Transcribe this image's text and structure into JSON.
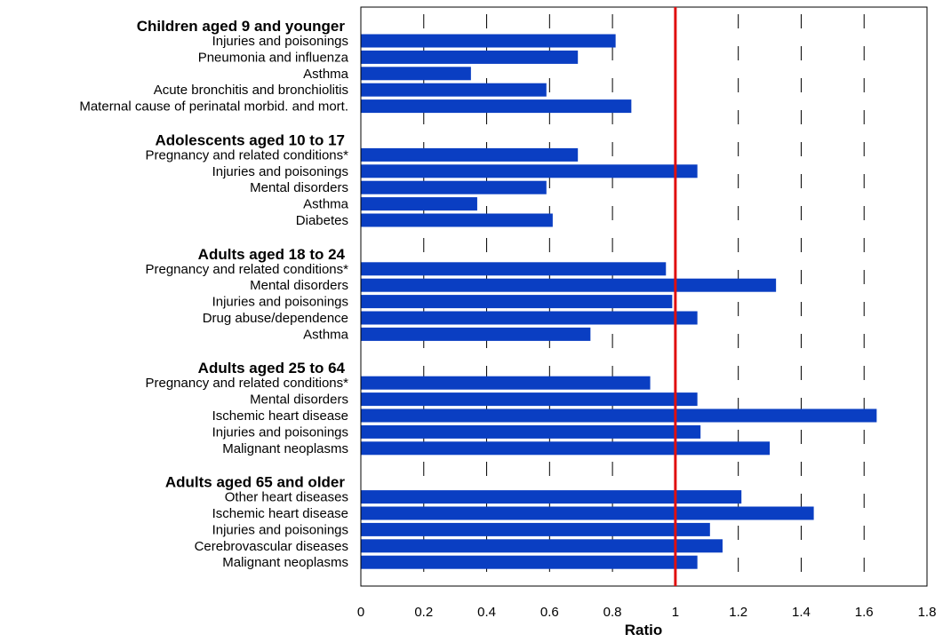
{
  "chart_data": {
    "type": "bar",
    "orientation": "horizontal",
    "xlabel": "Ratio",
    "xlim": [
      0,
      1.8
    ],
    "xticks": [
      "0",
      "0.2",
      "0.4",
      "0.6",
      "0.8",
      "1",
      "1.2",
      "1.4",
      "1.6",
      "1.8"
    ],
    "grid": "vertical dashed",
    "reference_line": 1,
    "colors": {
      "bar": "#0a3ec2",
      "reference_line": "#e01010"
    },
    "groups": [
      {
        "name": "Children aged 9 and younger",
        "items": [
          {
            "label": "Injuries and poisonings",
            "value": 0.81
          },
          {
            "label": "Pneumonia and influenza",
            "value": 0.69
          },
          {
            "label": "Asthma",
            "value": 0.35
          },
          {
            "label": "Acute bronchitis and bronchiolitis",
            "value": 0.59
          },
          {
            "label": "Maternal cause of perinatal morbid. and mort.",
            "value": 0.86
          }
        ]
      },
      {
        "name": "Adolescents aged 10 to 17",
        "items": [
          {
            "label": "Pregnancy and related conditions*",
            "value": 0.69
          },
          {
            "label": "Injuries and poisonings",
            "value": 1.07
          },
          {
            "label": "Mental disorders",
            "value": 0.59
          },
          {
            "label": "Asthma",
            "value": 0.37
          },
          {
            "label": "Diabetes",
            "value": 0.61
          }
        ]
      },
      {
        "name": "Adults aged 18 to 24",
        "items": [
          {
            "label": "Pregnancy and related conditions*",
            "value": 0.97
          },
          {
            "label": "Mental disorders",
            "value": 1.32
          },
          {
            "label": "Injuries and poisonings",
            "value": 0.99
          },
          {
            "label": "Drug abuse/dependence",
            "value": 1.07
          },
          {
            "label": "Asthma",
            "value": 0.73
          }
        ]
      },
      {
        "name": "Adults aged 25 to 64",
        "items": [
          {
            "label": "Pregnancy and related conditions*",
            "value": 0.92
          },
          {
            "label": "Mental disorders",
            "value": 1.07
          },
          {
            "label": "Ischemic heart disease",
            "value": 1.64
          },
          {
            "label": "Injuries and poisonings",
            "value": 1.08
          },
          {
            "label": "Malignant neoplasms",
            "value": 1.3
          }
        ]
      },
      {
        "name": "Adults aged 65 and older",
        "items": [
          {
            "label": "Other heart diseases",
            "value": 1.21
          },
          {
            "label": "Ischemic heart disease",
            "value": 1.44
          },
          {
            "label": "Injuries and poisonings",
            "value": 1.11
          },
          {
            "label": "Cerebrovascular diseases",
            "value": 1.15
          },
          {
            "label": "Malignant neoplasms",
            "value": 1.07
          }
        ]
      }
    ]
  }
}
